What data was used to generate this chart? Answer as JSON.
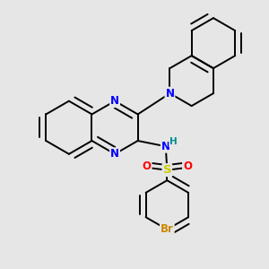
{
  "bg_color": "#e6e6e6",
  "bond_color": "#000000",
  "N_color": "#0000ff",
  "H_color": "#008b8b",
  "S_color": "#cccc00",
  "O_color": "#ff0000",
  "Br_color": "#cc8800",
  "bond_width": 1.4,
  "dbo": 0.022,
  "font_size_atom": 8.5,
  "fig_size": [
    3.0,
    3.0
  ],
  "dpi": 100,
  "xlim": [
    0.02,
    0.98
  ],
  "ylim": [
    0.02,
    0.98
  ]
}
